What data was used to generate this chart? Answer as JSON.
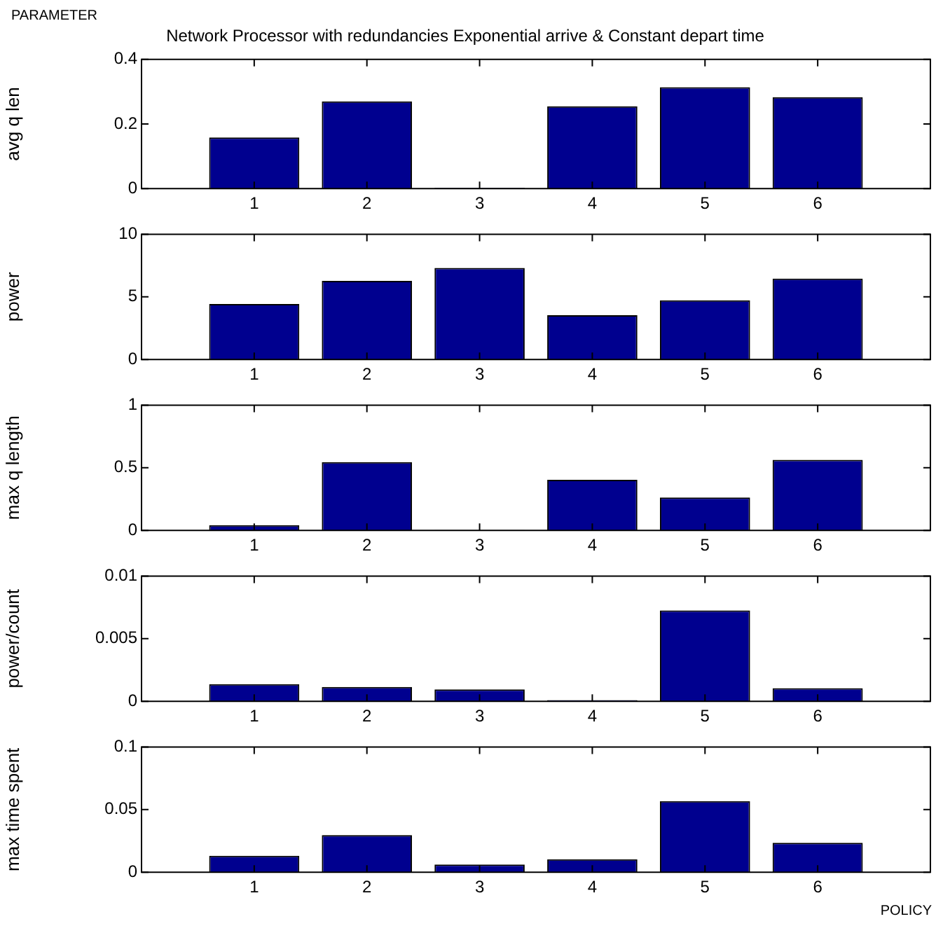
{
  "chart_data": [
    {
      "type": "bar",
      "title": "Network Processor with redundancies Exponential arrive & Constant depart time",
      "annotations": [
        "PARAMETER"
      ],
      "ylabel": "avg q len",
      "x": [
        1,
        2,
        3,
        4,
        5,
        6
      ],
      "xlim": [
        0,
        7
      ],
      "xticks": [
        1,
        2,
        3,
        4,
        5,
        6
      ],
      "values": [
        0.158,
        0.27,
        0.002,
        0.255,
        0.314,
        0.283
      ],
      "color": "#00008f",
      "ylim": [
        0,
        0.4
      ],
      "yticks": [
        0,
        0.2,
        0.4
      ]
    },
    {
      "type": "bar",
      "ylabel": "power",
      "x": [
        1,
        2,
        3,
        4,
        5,
        6
      ],
      "xlim": [
        0,
        7
      ],
      "xticks": [
        1,
        2,
        3,
        4,
        5,
        6
      ],
      "values": [
        4.43,
        6.27,
        7.31,
        3.54,
        4.72,
        6.46
      ],
      "color": "#00008f",
      "ylim": [
        0,
        10
      ],
      "yticks": [
        0,
        5,
        10
      ]
    },
    {
      "type": "bar",
      "ylabel": "max q length",
      "x": [
        1,
        2,
        3,
        4,
        5,
        6
      ],
      "xlim": [
        0,
        7
      ],
      "xticks": [
        1,
        2,
        3,
        4,
        5,
        6
      ],
      "values": [
        0.042,
        0.545,
        0.003,
        0.404,
        0.263,
        0.563
      ],
      "color": "#00008f",
      "ylim": [
        0,
        1
      ],
      "yticks": [
        0,
        0.5,
        1
      ]
    },
    {
      "type": "bar",
      "ylabel": "power/count",
      "x": [
        1,
        2,
        3,
        4,
        5,
        6
      ],
      "xlim": [
        0,
        7
      ],
      "xticks": [
        1,
        2,
        3,
        4,
        5,
        6
      ],
      "values": [
        0.00137,
        0.00114,
        0.00095,
        0.0001,
        0.00725,
        0.00104
      ],
      "color": "#00008f",
      "ylim": [
        0,
        0.01
      ],
      "yticks": [
        0,
        0.005,
        0.01
      ]
    },
    {
      "type": "bar",
      "annotations": [
        "POLICY"
      ],
      "ylabel": "max time spent",
      "x": [
        1,
        2,
        3,
        4,
        5,
        6
      ],
      "xlim": [
        0,
        7
      ],
      "xticks": [
        1,
        2,
        3,
        4,
        5,
        6
      ],
      "values": [
        0.0131,
        0.0296,
        0.0061,
        0.0103,
        0.0568,
        0.0235
      ],
      "color": "#00008f",
      "ylim": [
        0,
        0.1
      ],
      "yticks": [
        0,
        0.05,
        0.1
      ]
    }
  ]
}
